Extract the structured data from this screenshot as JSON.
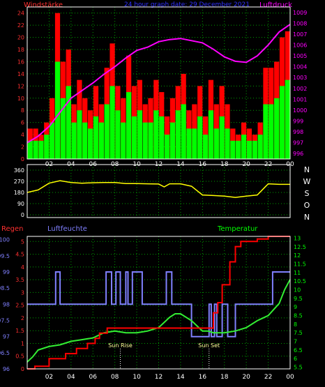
{
  "header": {
    "left_label": "Windstärke",
    "center_label": "24 hour graph date: 29 December 2021",
    "right_label": "Luftdruck"
  },
  "colors": {
    "wind_gust": "#ff0000",
    "wind_avg": "#00ff00",
    "pressure": "#ff00ff",
    "direction": "#ffff00",
    "humidity": "#8080ff",
    "temperature": "#00cc00",
    "rain": "#ff0000",
    "grid": "#00a000",
    "frame": "#ffffff",
    "background": "#000000"
  },
  "x_ticks": [
    "02",
    "04",
    "06",
    "08",
    "10",
    "12",
    "14",
    "16",
    "18",
    "20",
    "22",
    "00"
  ],
  "chart_data": [
    {
      "type": "bar",
      "id": "wind_pressure",
      "x_range": [
        0,
        24
      ],
      "y_left": {
        "label": "Windstärke",
        "ticks": [
          "0",
          "2",
          "4",
          "6",
          "8",
          "10",
          "12",
          "14",
          "16",
          "18",
          "20",
          "22",
          "24"
        ],
        "ylim": [
          0,
          25
        ]
      },
      "y_right": {
        "label": "Luftdruck",
        "ticks": [
          "996",
          "997",
          "998",
          "999",
          "1000",
          "1001",
          "1002",
          "1003",
          "1004",
          "1005",
          "1006",
          "1007",
          "1008",
          "1009"
        ],
        "ylim": [
          995.5,
          1009.5
        ]
      },
      "series": [
        {
          "name": "Windstärke",
          "kind": "gust-bars",
          "x": [
            0.5,
            1.0,
            1.5,
            2.0,
            2.5,
            3.0,
            3.5,
            4.0,
            4.5,
            5.0,
            5.5,
            6.0,
            6.5,
            7.0,
            7.5,
            8.0,
            8.5,
            9.0,
            9.5,
            10.0,
            10.5,
            11.0,
            11.5,
            12.0,
            12.5,
            13.0,
            13.5,
            14.0,
            14.5,
            15.0,
            15.5,
            16.0,
            16.5,
            17.0,
            17.5,
            18.0,
            18.5,
            19.0,
            19.5,
            20.0,
            20.5,
            21.0,
            21.5,
            22.0,
            22.5,
            23.0,
            23.5,
            24.0
          ],
          "values": [
            5,
            5,
            4,
            6,
            10,
            24,
            16,
            18,
            9,
            13,
            10,
            8,
            12,
            9,
            15,
            19,
            12,
            10,
            17,
            12,
            13,
            9,
            10,
            13,
            11,
            7,
            10,
            12,
            14,
            8,
            9,
            12,
            7,
            13,
            9,
            12,
            9,
            5,
            4,
            6,
            5,
            4,
            6,
            15,
            15,
            16,
            20,
            21
          ]
        },
        {
          "name": "Windstärke",
          "kind": "avg-bars",
          "x": [
            0.5,
            1.0,
            1.5,
            2.0,
            2.5,
            3.0,
            3.5,
            4.0,
            4.5,
            5.0,
            5.5,
            6.0,
            6.5,
            7.0,
            7.5,
            8.0,
            8.5,
            9.0,
            9.5,
            10.0,
            10.5,
            11.0,
            11.5,
            12.0,
            12.5,
            13.0,
            13.5,
            14.0,
            14.5,
            15.0,
            15.5,
            16.0,
            16.5,
            17.0,
            17.5,
            18.0,
            18.5,
            19.0,
            19.5,
            20.0,
            20.5,
            21.0,
            21.5,
            22.0,
            22.5,
            23.0,
            23.5,
            24.0
          ],
          "values": [
            3,
            3,
            3,
            4,
            6,
            16,
            10,
            12,
            6,
            8,
            6,
            5,
            7,
            6,
            9,
            12,
            8,
            6,
            11,
            7,
            8,
            6,
            6,
            8,
            7,
            4,
            6,
            8,
            9,
            5,
            5,
            7,
            4,
            8,
            5,
            7,
            5,
            3,
            3,
            4,
            3,
            3,
            4,
            9,
            9,
            10,
            12,
            13
          ]
        },
        {
          "name": "Luftdruck",
          "kind": "line",
          "x": [
            0,
            1,
            2,
            3,
            4,
            5,
            6,
            7,
            8,
            9,
            10,
            11,
            12,
            13,
            14,
            15,
            16,
            17,
            18,
            19,
            20,
            21,
            22,
            23,
            24
          ],
          "values": [
            997.0,
            997.6,
            998.5,
            999.8,
            1001.1,
            1001.8,
            1002.5,
            1003.3,
            1004.0,
            1004.8,
            1005.5,
            1005.8,
            1006.3,
            1006.5,
            1006.6,
            1006.4,
            1006.2,
            1005.6,
            1004.9,
            1004.5,
            1004.4,
            1005.0,
            1006.0,
            1007.2,
            1007.9
          ]
        }
      ]
    },
    {
      "type": "line",
      "id": "direction",
      "x_range": [
        0,
        24
      ],
      "y_left": {
        "ticks": [
          "0",
          "90",
          "180",
          "270",
          "360"
        ],
        "ylim": [
          0,
          360
        ]
      },
      "y_right": {
        "ticks": [
          "N",
          "W",
          "S",
          "O",
          "N"
        ]
      },
      "series": [
        {
          "kind": "line",
          "x": [
            0,
            1,
            2,
            3,
            4,
            5,
            6,
            7,
            8,
            9,
            10,
            11,
            12,
            12.5,
            13,
            14,
            15,
            16,
            17,
            18,
            19,
            20,
            21,
            22,
            23,
            24
          ],
          "values": [
            180,
            200,
            255,
            275,
            260,
            255,
            258,
            260,
            260,
            252,
            252,
            250,
            248,
            225,
            250,
            250,
            230,
            160,
            155,
            150,
            140,
            150,
            160,
            250,
            245,
            245
          ]
        }
      ]
    },
    {
      "type": "line",
      "id": "rain_humidity_temperature",
      "x_range": [
        0,
        24
      ],
      "labels": {
        "rain": "Regen",
        "humidity": "Luftfeuchte",
        "temperature": "Temperatur"
      },
      "annotations": [
        {
          "label": "Sun Rise",
          "x": 8.5
        },
        {
          "label": "Sun Set",
          "x": 16.6
        }
      ],
      "y_rain": {
        "ticks": [
          "0",
          "0.5",
          "1",
          "1.5",
          "2",
          "2.5",
          "3",
          "3.5",
          "4",
          "4.5",
          "5"
        ],
        "ylim": [
          0,
          5.2
        ]
      },
      "y_humidity": {
        "ticks": [
          "96",
          "96.5",
          "97",
          "97.5",
          "98",
          "98.5",
          "99",
          "99.5",
          "100"
        ],
        "ylim": [
          96,
          100.1
        ]
      },
      "y_temperature": {
        "ticks": [
          "5.5",
          "6",
          "6.5",
          "7",
          "7.5",
          "8",
          "8.5",
          "9",
          "9.5",
          "10",
          "10.5",
          "11",
          "11.5",
          "12",
          "12.5",
          "13"
        ],
        "ylim": [
          5.4,
          13.1
        ]
      },
      "series": [
        {
          "name": "Luftfeuchte",
          "kind": "step",
          "x": [
            0,
            2.6,
            2.6,
            3.0,
            3.0,
            7.2,
            7.2,
            7.7,
            7.7,
            8.1,
            8.1,
            8.5,
            8.5,
            9.0,
            9.0,
            9.2,
            9.2,
            9.6,
            9.6,
            10.5,
            10.5,
            12.7,
            12.7,
            13.2,
            13.2,
            15.0,
            15.0,
            16.6,
            16.6,
            16.8,
            16.8,
            17.1,
            17.1,
            17.3,
            17.3,
            17.8,
            17.8,
            18.3,
            18.3,
            19.0,
            19.0,
            22.4,
            22.4,
            24
          ],
          "values": [
            98,
            98,
            99,
            99,
            98,
            98,
            99,
            99,
            98,
            98,
            99,
            99,
            98,
            98,
            99,
            99,
            98,
            98,
            99,
            99,
            98,
            98,
            99,
            99,
            98,
            98,
            97,
            97,
            98,
            98,
            97,
            97,
            98,
            98,
            97,
            97,
            98,
            98,
            97,
            97,
            98,
            98,
            99,
            99
          ]
        },
        {
          "name": "Regen",
          "kind": "step",
          "x": [
            0,
            0.7,
            0.7,
            2.0,
            2.0,
            3.5,
            3.5,
            4.5,
            4.5,
            5.5,
            5.5,
            6.2,
            6.2,
            6.6,
            6.6,
            7.3,
            7.3,
            10.0,
            10.0,
            16.0,
            16.0,
            17.0,
            17.0,
            17.4,
            17.4,
            17.8,
            17.8,
            18.5,
            18.5,
            19.0,
            19.0,
            19.5,
            19.5,
            21.0,
            21.0,
            22.0,
            22.0,
            24
          ],
          "values": [
            0,
            0,
            0.1,
            0.1,
            0.4,
            0.4,
            0.6,
            0.6,
            0.8,
            0.8,
            1.0,
            1.0,
            1.2,
            1.2,
            1.4,
            1.4,
            1.6,
            1.6,
            1.6,
            1.6,
            1.6,
            1.6,
            2.2,
            2.2,
            2.6,
            2.6,
            3.3,
            3.3,
            4.2,
            4.2,
            4.8,
            4.8,
            5.0,
            5.0,
            5.1,
            5.1,
            5.2,
            5.2
          ]
        },
        {
          "name": "Temperatur",
          "kind": "line",
          "x": [
            0,
            0.5,
            1,
            2,
            3,
            4,
            5,
            6,
            7,
            8,
            9,
            10,
            11,
            12,
            12.5,
            13,
            13.5,
            14,
            15,
            16,
            16.5,
            17,
            18,
            19,
            20,
            21,
            22,
            23,
            23.5,
            24
          ],
          "values": [
            5.8,
            6.1,
            6.5,
            6.7,
            6.8,
            7.0,
            7.1,
            7.2,
            7.5,
            7.6,
            7.5,
            7.5,
            7.6,
            7.8,
            8.1,
            8.4,
            8.6,
            8.6,
            8.2,
            7.6,
            7.6,
            7.5,
            7.5,
            7.6,
            7.8,
            8.2,
            8.5,
            9.2,
            10.0,
            10.6
          ]
        }
      ]
    }
  ]
}
